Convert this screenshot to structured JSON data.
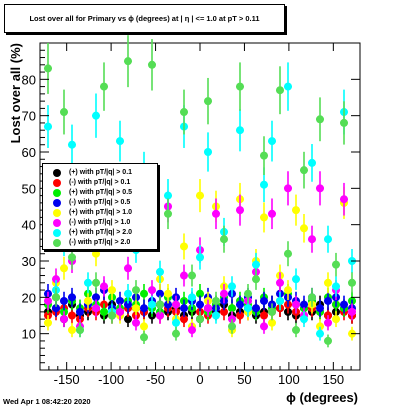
{
  "chart_data": {
    "type": "scatter",
    "title": "Lost over all for Primary vs ϕ (degrees) at | η | <= 1.0 at pT > 0.11",
    "xlabel": "ϕ (degrees)",
    "ylabel": "Lost over all (%)",
    "xlim": [
      -180,
      180
    ],
    "ylim": [
      0,
      90
    ],
    "x_ticks": [
      -150,
      -100,
      -50,
      0,
      50,
      100,
      150
    ],
    "y_ticks": [
      10,
      20,
      30,
      40,
      50,
      60,
      70,
      80
    ],
    "grid": false,
    "legend_position": "left-middle",
    "x": [
      -171,
      -162,
      -153,
      -144,
      -135,
      -126,
      -117,
      -108,
      -99,
      -90,
      -81,
      -72,
      -63,
      -54,
      -45,
      -36,
      -27,
      -18,
      -9,
      0,
      9,
      18,
      27,
      36,
      45,
      54,
      63,
      72,
      81,
      90,
      99,
      108,
      117,
      126,
      135,
      144,
      153,
      162,
      171
    ],
    "series": [
      {
        "name": "(+) with pT/|q| > 0.1",
        "color": "#000000",
        "marker": "circle",
        "values": [
          16,
          17,
          14,
          18,
          15,
          16,
          17,
          15,
          18,
          16,
          14,
          17,
          16,
          15,
          18,
          16,
          17,
          15,
          16,
          14,
          17,
          16,
          18,
          15,
          16,
          17,
          15,
          16,
          18,
          17,
          16,
          15,
          17,
          16,
          18,
          15,
          16,
          17,
          15
        ]
      },
      {
        "name": "(-) with pT/|q| > 0.1",
        "color": "#ff0000",
        "marker": "circle",
        "values": [
          15,
          16,
          17,
          15,
          14,
          17,
          16,
          18,
          15,
          16,
          17,
          15,
          16,
          18,
          15,
          17,
          16,
          14,
          17,
          16,
          15,
          18,
          16,
          17,
          15,
          16,
          17,
          15,
          16,
          17,
          18,
          16,
          15,
          17,
          16,
          15,
          18,
          16,
          15
        ]
      },
      {
        "name": "(+) with pT/|q| > 0.5",
        "color": "#00ee00",
        "marker": "circle",
        "values": [
          18,
          20,
          16,
          19,
          17,
          21,
          18,
          16,
          20,
          17,
          19,
          18,
          21,
          17,
          16,
          20,
          18,
          19,
          17,
          21,
          16,
          18,
          20,
          17,
          19,
          18,
          16,
          20,
          17,
          19,
          21,
          18,
          17,
          19,
          16,
          20,
          18,
          17,
          19
        ]
      },
      {
        "name": "(-) with pT/|q| > 0.5",
        "color": "#0000ee",
        "marker": "circle",
        "values": [
          21,
          17,
          19,
          20,
          16,
          18,
          20,
          22,
          17,
          19,
          18,
          20,
          17,
          19,
          21,
          18,
          20,
          17,
          19,
          18,
          20,
          17,
          19,
          21,
          18,
          20,
          17,
          19,
          18,
          21,
          20,
          19,
          18,
          20,
          17,
          19,
          20,
          18,
          17
        ]
      },
      {
        "name": "(+) with pT/|q| > 1.0",
        "color": "#ffff00",
        "marker": "circle",
        "values": [
          13,
          24,
          28,
          11,
          45,
          19,
          32,
          47,
          22,
          15,
          38,
          17,
          12,
          46,
          25,
          21,
          14,
          34,
          12,
          48,
          19,
          45,
          23,
          11,
          47,
          16,
          30,
          42,
          13,
          26,
          22,
          44,
          39,
          18,
          12,
          24,
          14,
          46,
          10
        ]
      },
      {
        "name": "(-) with pT/|q| > 1.0",
        "color": "#ff00ff",
        "marker": "circle",
        "values": [
          19,
          25,
          14,
          30,
          12,
          44,
          17,
          23,
          40,
          16,
          28,
          13,
          37,
          22,
          15,
          45,
          18,
          26,
          11,
          33,
          17,
          43,
          21,
          14,
          44,
          19,
          27,
          12,
          43,
          24,
          50,
          18,
          15,
          36,
          50,
          13,
          22,
          47,
          16
        ]
      },
      {
        "name": "(+) with pT/|q| > 2.0",
        "color": "#00ffff",
        "marker": "circle",
        "values": [
          67,
          22,
          35,
          62,
          11,
          24,
          70,
          39,
          16,
          63,
          21,
          33,
          55,
          18,
          27,
          48,
          13,
          67,
          20,
          31,
          60,
          15,
          38,
          23,
          66,
          17,
          29,
          51,
          63,
          19,
          78,
          25,
          14,
          57,
          10,
          36,
          23,
          71,
          30
        ]
      },
      {
        "name": "(-) with pT/|q| > 2.0",
        "color": "#55dd55",
        "marker": "circle",
        "values": [
          83,
          20,
          71,
          31,
          11,
          47,
          24,
          78,
          15,
          39,
          85,
          22,
          9,
          84,
          18,
          43,
          10,
          71,
          26,
          14,
          74,
          19,
          36,
          12,
          78,
          21,
          25,
          59,
          16,
          77,
          32,
          11,
          55,
          20,
          69,
          8,
          29,
          68,
          24
        ]
      }
    ],
    "footer": "Wed Apr  1 08:42:20 2020"
  }
}
